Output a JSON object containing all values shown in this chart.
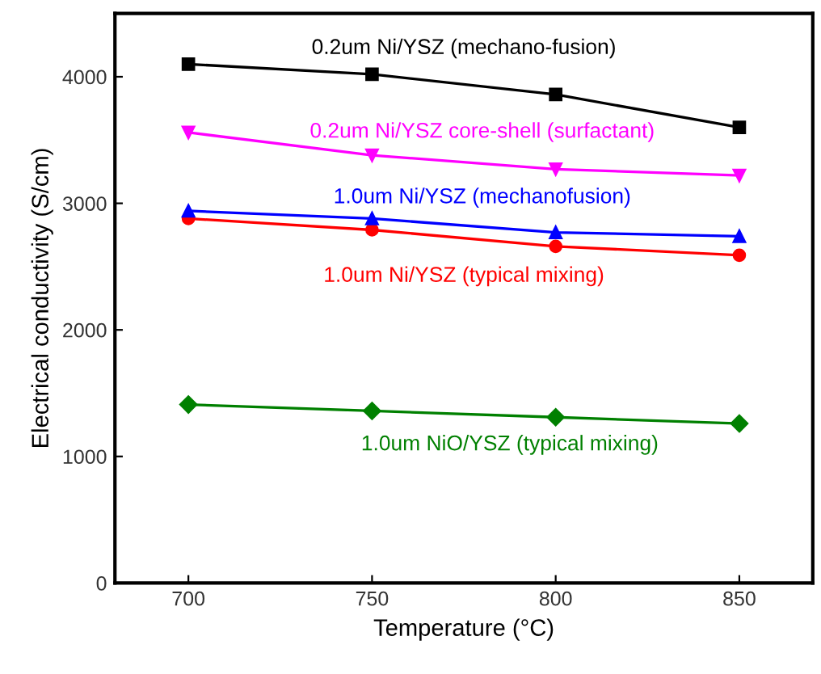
{
  "chart_data": {
    "type": "line",
    "xlabel": "Temperature (°C)",
    "ylabel": "Electrical conductivity (S/cm)",
    "x": [
      700,
      750,
      800,
      850
    ],
    "xlim": [
      680,
      870
    ],
    "xticks": [
      700,
      750,
      800,
      850
    ],
    "ylim": [
      0,
      4500
    ],
    "yticks": [
      0,
      1000,
      2000,
      3000,
      4000
    ],
    "grid": false,
    "legend": false,
    "series": [
      {
        "name": "0.2um Ni/YSZ (mechano-fusion)",
        "color": "#000000",
        "marker": "square",
        "values": [
          4100,
          4020,
          3860,
          3600
        ]
      },
      {
        "name": "0.2um Ni/YSZ core-shell (surfactant)",
        "color": "#ff00ff",
        "marker": "triangle_down",
        "values": [
          3560,
          3380,
          3270,
          3220
        ]
      },
      {
        "name": "1.0um Ni/YSZ (mechanofusion)",
        "color": "#0000ff",
        "marker": "triangle",
        "values": [
          2940,
          2880,
          2770,
          2740
        ]
      },
      {
        "name": "1.0um Ni/YSZ (typical mixing)",
        "color": "#ff0000",
        "marker": "circle",
        "values": [
          2880,
          2790,
          2660,
          2590
        ]
      },
      {
        "name": "1.0um NiO/YSZ (typical mixing)",
        "color": "#008000",
        "marker": "diamond",
        "values": [
          1410,
          1360,
          1310,
          1260
        ]
      }
    ]
  }
}
